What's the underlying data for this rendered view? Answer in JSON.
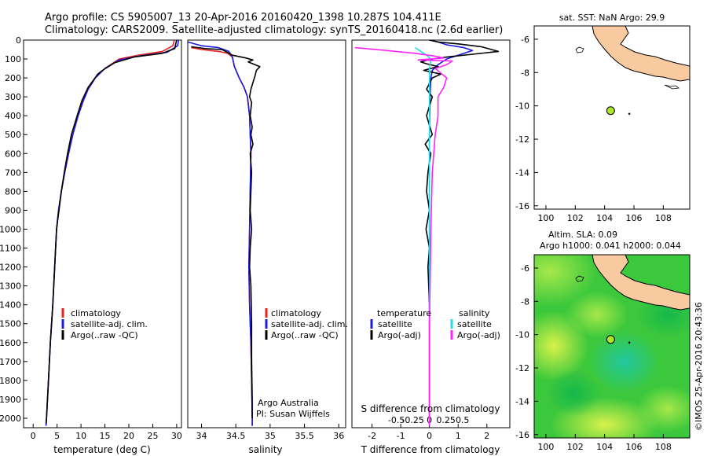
{
  "title_line1": "Argo profile: CS 5905007_13 20-Apr-2016 20160420_1398 10.287S 104.411E",
  "title_line2": "Climatology: CARS2009. Satellite-adjusted climatology: synTS_20160418.nc (2.6d earlier)",
  "colors": {
    "climatology": "#e8231f",
    "satellite": "#1a1ae6",
    "argo": "#000000",
    "sat_salinity": "#22dde8",
    "argo_adj_salinity": "#ff22ff",
    "land": "#f9c9a0",
    "argo_dot": "#aee62a",
    "sla_green": "#3cc83c"
  },
  "chart_data": [
    {
      "type": "line",
      "id": "temperature",
      "xlabel": "temperature (deg C)",
      "xlim": [
        -2,
        31
      ],
      "ylim": [
        2050,
        0
      ],
      "xticks": [
        0,
        5,
        10,
        15,
        20,
        25,
        30
      ],
      "yticks": [
        0,
        100,
        200,
        300,
        400,
        500,
        600,
        700,
        800,
        900,
        1000,
        1100,
        1200,
        1300,
        1400,
        1500,
        1600,
        1700,
        1800,
        1900,
        2000
      ],
      "legend": [
        "climatology",
        "satellite-adj. clim.",
        "Argo(..raw -QC)"
      ],
      "series": [
        {
          "name": "climatology",
          "color_key": "climatology",
          "points": [
            [
              29.5,
              0
            ],
            [
              29.2,
              30
            ],
            [
              27,
              60
            ],
            [
              22,
              80
            ],
            [
              18,
              100
            ],
            [
              15,
              150
            ],
            [
              13,
              200
            ],
            [
              11.5,
              260
            ],
            [
              10.5,
              320
            ],
            [
              9.4,
              400
            ],
            [
              8.3,
              500
            ],
            [
              7.4,
              600
            ],
            [
              6.6,
              700
            ],
            [
              5.9,
              800
            ],
            [
              5.3,
              900
            ],
            [
              4.9,
              1000
            ],
            [
              4.5,
              1200
            ],
            [
              4.1,
              1400
            ],
            [
              3.6,
              1600
            ],
            [
              3.2,
              1800
            ],
            [
              2.8,
              2000
            ],
            [
              2.7,
              2040
            ]
          ]
        },
        {
          "name": "satellite-adj. clim.",
          "color_key": "satellite",
          "points": [
            [
              30.4,
              0
            ],
            [
              30.2,
              30
            ],
            [
              28,
              65
            ],
            [
              22,
              85
            ],
            [
              18,
              105
            ],
            [
              15,
              150
            ],
            [
              13,
              200
            ],
            [
              11.5,
              260
            ],
            [
              10.5,
              320
            ],
            [
              9.4,
              400
            ],
            [
              8.3,
              500
            ],
            [
              7.4,
              600
            ],
            [
              6.6,
              700
            ],
            [
              5.9,
              800
            ],
            [
              5.3,
              900
            ],
            [
              4.9,
              1000
            ],
            [
              4.5,
              1200
            ],
            [
              4.1,
              1400
            ],
            [
              3.6,
              1600
            ],
            [
              3.2,
              1800
            ],
            [
              2.8,
              2000
            ],
            [
              2.7,
              2040
            ]
          ]
        },
        {
          "name": "Argo(..raw -QC)",
          "color_key": "argo",
          "points": [
            [
              30,
              0
            ],
            [
              29.8,
              20
            ],
            [
              29.6,
              45
            ],
            [
              27,
              70
            ],
            [
              21,
              90
            ],
            [
              17,
              120
            ],
            [
              14.5,
              160
            ],
            [
              13.5,
              180
            ],
            [
              11.5,
              250
            ],
            [
              10.2,
              320
            ],
            [
              9.2,
              400
            ],
            [
              8.0,
              500
            ],
            [
              7.2,
              600
            ],
            [
              6.5,
              700
            ],
            [
              5.9,
              800
            ],
            [
              5.4,
              900
            ],
            [
              4.9,
              1000
            ],
            [
              4.5,
              1200
            ],
            [
              4.1,
              1400
            ],
            [
              3.6,
              1600
            ],
            [
              3.2,
              1800
            ],
            [
              2.8,
              2000
            ],
            [
              2.7,
              2030
            ]
          ]
        }
      ]
    },
    {
      "type": "line",
      "id": "salinity",
      "xlabel": "salinity",
      "xlim": [
        33.8,
        36.1
      ],
      "ylim": [
        2050,
        0
      ],
      "xticks": [
        34,
        34.5,
        35,
        35.5,
        36
      ],
      "legend": [
        "climatology",
        "satellite-adj. clim.",
        "Argo(..raw -QC)"
      ],
      "annotation": [
        "Argo Australia",
        "PI: Susan Wijffels"
      ],
      "series": [
        {
          "name": "climatology",
          "color_key": "climatology",
          "points": [
            [
              33.85,
              40
            ],
            [
              34.0,
              50
            ],
            [
              34.25,
              60
            ],
            [
              34.38,
              70
            ],
            [
              34.45,
              90
            ],
            [
              34.48,
              140
            ],
            [
              34.55,
              200
            ],
            [
              34.62,
              250
            ],
            [
              34.67,
              300
            ],
            [
              34.7,
              400
            ],
            [
              34.72,
              600
            ],
            [
              34.71,
              800
            ],
            [
              34.7,
              1000
            ],
            [
              34.69,
              1200
            ],
            [
              34.7,
              1400
            ],
            [
              34.72,
              1600
            ],
            [
              34.73,
              1800
            ],
            [
              34.74,
              2000
            ],
            [
              34.74,
              2040
            ]
          ]
        },
        {
          "name": "satellite-adj. clim.",
          "color_key": "satellite",
          "points": [
            [
              33.8,
              10
            ],
            [
              34.0,
              30
            ],
            [
              34.25,
              40
            ],
            [
              34.4,
              60
            ],
            [
              34.45,
              90
            ],
            [
              34.48,
              140
            ],
            [
              34.55,
              200
            ],
            [
              34.62,
              250
            ],
            [
              34.67,
              300
            ],
            [
              34.7,
              400
            ],
            [
              34.72,
              600
            ],
            [
              34.71,
              800
            ],
            [
              34.7,
              1000
            ],
            [
              34.69,
              1200
            ],
            [
              34.7,
              1400
            ],
            [
              34.72,
              1600
            ],
            [
              34.73,
              1800
            ],
            [
              34.74,
              2000
            ],
            [
              34.74,
              2040
            ]
          ]
        },
        {
          "name": "Argo(..raw -QC)",
          "color_key": "argo",
          "points": [
            [
              33.85,
              35
            ],
            [
              34.05,
              45
            ],
            [
              34.3,
              50
            ],
            [
              34.45,
              80
            ],
            [
              34.65,
              95
            ],
            [
              34.75,
              105
            ],
            [
              34.68,
              115
            ],
            [
              34.85,
              140
            ],
            [
              34.8,
              160
            ],
            [
              34.78,
              190
            ],
            [
              34.72,
              260
            ],
            [
              34.7,
              300
            ],
            [
              34.73,
              330
            ],
            [
              34.71,
              400
            ],
            [
              34.74,
              460
            ],
            [
              34.72,
              500
            ],
            [
              34.75,
              550
            ],
            [
              34.71,
              600
            ],
            [
              34.73,
              700
            ],
            [
              34.72,
              800
            ],
            [
              34.71,
              900
            ],
            [
              34.73,
              1000
            ],
            [
              34.71,
              1100
            ],
            [
              34.7,
              1200
            ],
            [
              34.72,
              1300
            ],
            [
              34.73,
              1500
            ],
            [
              34.73,
              1700
            ],
            [
              34.74,
              1900
            ],
            [
              34.74,
              2000
            ]
          ]
        }
      ]
    },
    {
      "type": "line",
      "id": "difference",
      "xlabel": "T difference from climatology",
      "xlabel_top": "S difference from climatology",
      "xlim": [
        -2.7,
        2.8
      ],
      "ylim": [
        2050,
        0
      ],
      "xticks_T": [
        -2,
        -1,
        0,
        1,
        2
      ],
      "xticks_S": [
        -0.5,
        -0.25,
        0,
        0.25,
        0.5
      ],
      "xticks_S_labels": [
        "-0.5",
        "-0.25",
        "0",
        "0.25",
        "0.5"
      ],
      "legend_temperature_title": "temperature",
      "legend_salinity_title": "salinity",
      "legend": [
        "satellite",
        "Argo(-adj)",
        "satellite",
        "Argo(-adj)"
      ],
      "series": [
        {
          "name": "T satellite",
          "color_key": "satellite",
          "points": [
            [
              0,
              0
            ],
            [
              0.3,
              10
            ],
            [
              0.6,
              25
            ],
            [
              1.2,
              40
            ],
            [
              1.5,
              55
            ],
            [
              1.0,
              80
            ],
            [
              0.6,
              100
            ],
            [
              0.3,
              130
            ],
            [
              0.1,
              160
            ],
            [
              0.05,
              200
            ],
            [
              0.02,
              300
            ],
            [
              0,
              500
            ],
            [
              0,
              1000
            ],
            [
              0,
              2040
            ]
          ]
        },
        {
          "name": "T Argo(-adj)",
          "color_key": "argo",
          "points": [
            [
              0,
              0
            ],
            [
              0.3,
              10
            ],
            [
              1.0,
              20
            ],
            [
              1.8,
              35
            ],
            [
              2.4,
              60
            ],
            [
              1.5,
              75
            ],
            [
              0.6,
              90
            ],
            [
              0.1,
              100
            ],
            [
              -0.3,
              115
            ],
            [
              -0.1,
              125
            ],
            [
              0.3,
              140
            ],
            [
              -0.2,
              160
            ],
            [
              0.4,
              180
            ],
            [
              0.1,
              200
            ],
            [
              -0.1,
              260
            ],
            [
              0.1,
              300
            ],
            [
              -0.1,
              400
            ],
            [
              0.1,
              500
            ],
            [
              -0.15,
              550
            ],
            [
              0.05,
              600
            ],
            [
              -0.05,
              700
            ],
            [
              -0.1,
              800
            ],
            [
              0,
              900
            ],
            [
              -0.12,
              1000
            ],
            [
              0,
              1100
            ],
            [
              -0.05,
              1200
            ],
            [
              0,
              1400
            ],
            [
              0,
              1700
            ],
            [
              0,
              2040
            ]
          ]
        },
        {
          "name": "S satellite",
          "color_key": "sat_salinity",
          "points": [
            [
              -0.5,
              40
            ],
            [
              -0.3,
              60
            ],
            [
              -0.1,
              80
            ],
            [
              0.05,
              100
            ],
            [
              0,
              150
            ],
            [
              0,
              300
            ],
            [
              0,
              1000
            ],
            [
              0,
              2040
            ]
          ]
        },
        {
          "name": "S Argo(-adj)",
          "color_key": "argo_adj_salinity",
          "points": [
            [
              -2.6,
              40
            ],
            [
              -1.5,
              55
            ],
            [
              -0.5,
              70
            ],
            [
              0.2,
              85
            ],
            [
              0.5,
              95
            ],
            [
              -0.4,
              105
            ],
            [
              0.8,
              110
            ],
            [
              0.6,
              130
            ],
            [
              0.2,
              150
            ],
            [
              0.6,
              200
            ],
            [
              0.5,
              250
            ],
            [
              0.3,
              300
            ],
            [
              0.3,
              400
            ],
            [
              0.2,
              500
            ],
            [
              0.1,
              700
            ],
            [
              0.05,
              1000
            ],
            [
              0,
              1500
            ],
            [
              0,
              2040
            ]
          ]
        }
      ]
    },
    {
      "type": "map",
      "id": "sst_map",
      "title": "sat. SST: NaN Argo: 29.9",
      "xlim": [
        99.2,
        109.8
      ],
      "ylim": [
        -16.2,
        -5.2
      ],
      "xticks": [
        100,
        102,
        104,
        106,
        108
      ],
      "yticks": [
        -6,
        -8,
        -10,
        -12,
        -14,
        -16
      ],
      "float_position": [
        104.411,
        -10.287
      ],
      "island": [
        105.6,
        -10.45
      ]
    },
    {
      "type": "map",
      "id": "sla_map",
      "title_line1": "Altim. SLA: 0.09",
      "title_line2": "Argo h1000: 0.041 h2000: 0.044",
      "xlim": [
        99.2,
        109.8
      ],
      "ylim": [
        -16.2,
        -5.2
      ],
      "xticks": [
        100,
        102,
        104,
        106,
        108
      ],
      "yticks": [
        -6,
        -8,
        -10,
        -12,
        -14,
        -16
      ],
      "float_position": [
        104.411,
        -10.287
      ],
      "island": [
        105.6,
        -10.45
      ]
    }
  ],
  "credit": "©IMOS 25-Apr-2016 20:43:36"
}
